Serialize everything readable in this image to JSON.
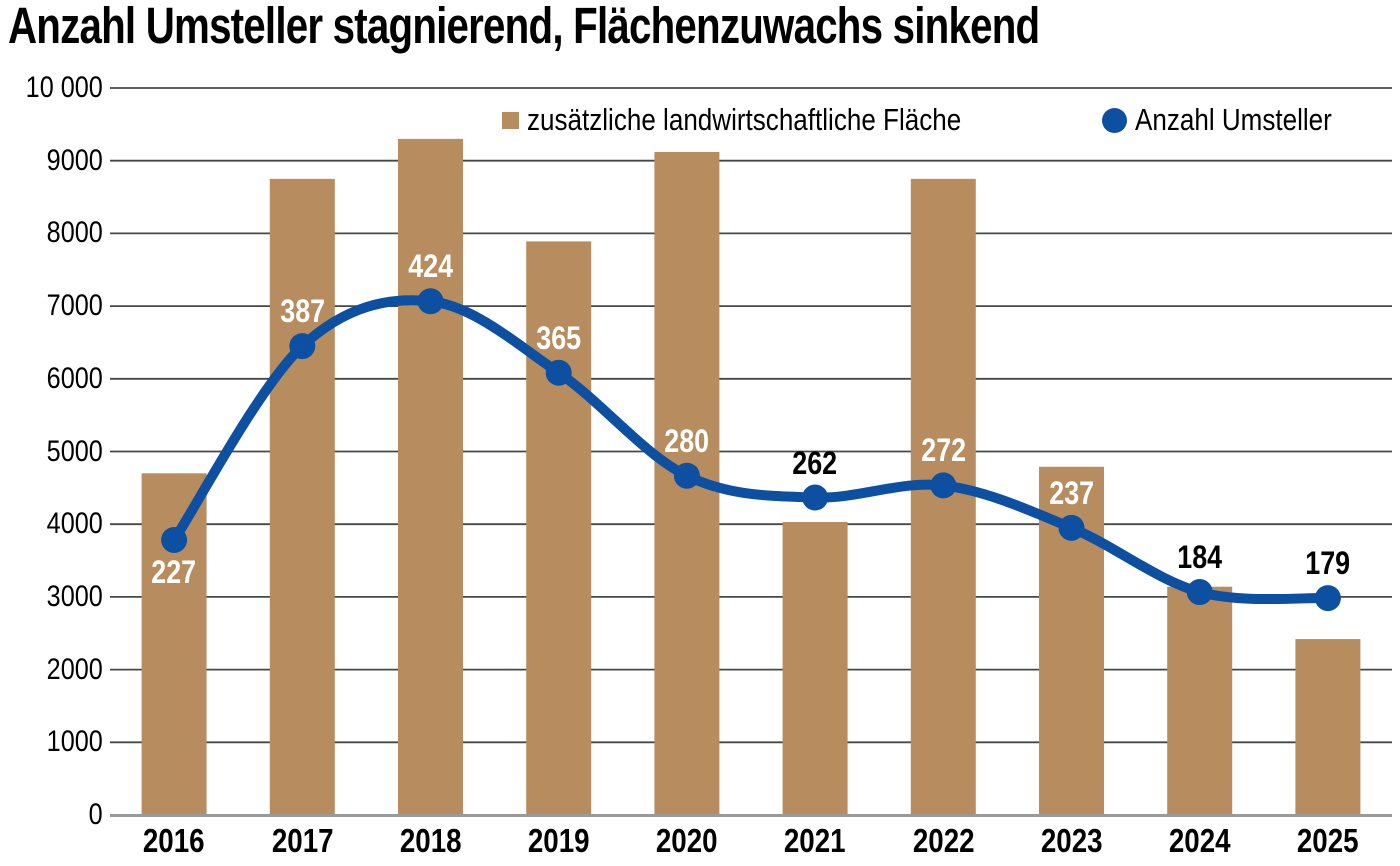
{
  "title": "Anzahl Umsteller stagnierend, Flächenzuwachs sinkend",
  "legend": {
    "bars_label": "zusätzliche landwirtschaftliche Fläche",
    "line_label": "Anzahl Umsteller"
  },
  "colors": {
    "bar": "#b78d60",
    "line": "#0d4fa0",
    "grid": "#474747",
    "axis": "#9a9a9a",
    "label_on_bar": "#ffffff",
    "label_off_bar": "#000000",
    "background": "#ffffff",
    "text": "#000000"
  },
  "chart_data": {
    "type": "combo bar+line",
    "title": "Anzahl Umsteller stagnierend, Flächenzuwachs sinkend",
    "categories": [
      "2016",
      "2017",
      "2018",
      "2019",
      "2020",
      "2021",
      "2022",
      "2023",
      "2024",
      "2025"
    ],
    "series": [
      {
        "name": "zusätzliche landwirtschaftliche Fläche",
        "type": "bar",
        "axis": "left",
        "values": [
          4700,
          8750,
          9300,
          7890,
          9120,
          4030,
          8750,
          4790,
          3140,
          2420
        ],
        "values_note": "estimated from gridlines, no printed labels"
      },
      {
        "name": "Anzahl Umsteller",
        "type": "line",
        "axis": "hidden secondary",
        "values": [
          227,
          387,
          424,
          365,
          280,
          262,
          272,
          237,
          184,
          179
        ]
      }
    ],
    "y_axis": {
      "min": 0,
      "max": 10000,
      "tick_step": 1000,
      "tick_labels": [
        "10 000",
        "9000",
        "8000",
        "7000",
        "6000",
        "5000",
        "4000",
        "3000",
        "2000",
        "1000",
        "0"
      ]
    },
    "secondary_axis": {
      "min": 0,
      "max": 600,
      "visible": false
    },
    "grid": true,
    "legend_position": "top",
    "data_labels": {
      "series": "Anzahl Umsteller",
      "values": [
        "227",
        "387",
        "424",
        "365",
        "280",
        "262",
        "272",
        "237",
        "184",
        "179"
      ],
      "colors": [
        "white",
        "white",
        "white",
        "white",
        "white",
        "black",
        "white",
        "white",
        "black",
        "black"
      ],
      "position": [
        "below",
        "above",
        "above",
        "above",
        "above",
        "above",
        "above",
        "above",
        "above",
        "above"
      ]
    }
  }
}
